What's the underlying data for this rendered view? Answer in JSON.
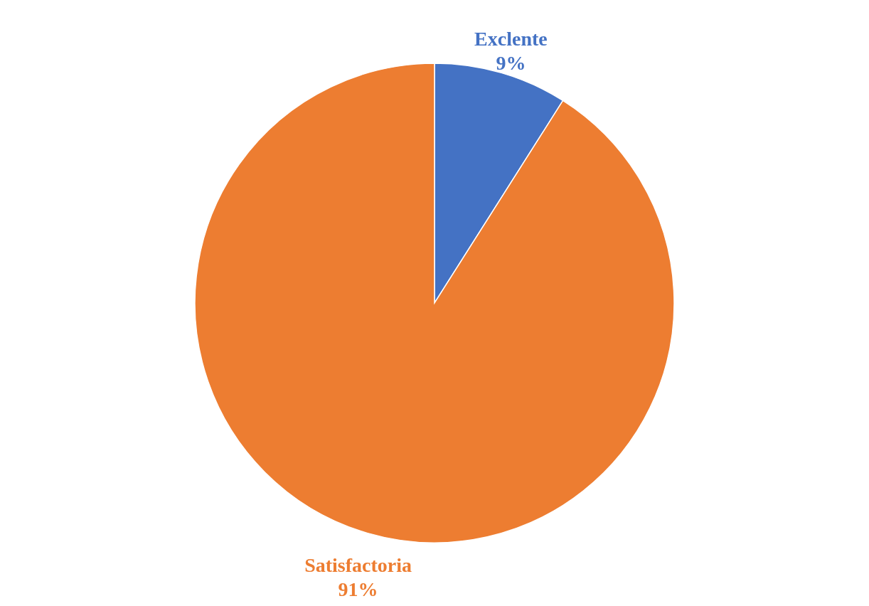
{
  "chart_data": {
    "type": "pie",
    "categories": [
      "Exclente",
      "Satisfactoria"
    ],
    "values": [
      9,
      91
    ],
    "colors": [
      "#4472c4",
      "#ed7d31"
    ],
    "value_labels": [
      "9%",
      "91%"
    ]
  }
}
